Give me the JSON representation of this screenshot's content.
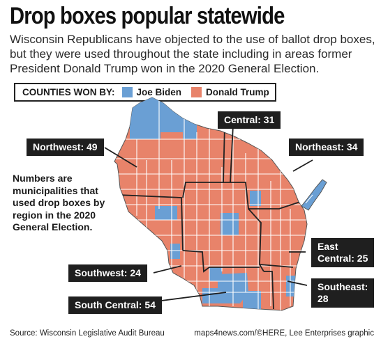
{
  "title": "Drop boxes popular statewide",
  "subtitle": "Wisconsin Republicans have objected to the use of ballot drop boxes, but they were used throughout the state including in areas former President Donald Trump won in the 2020 General Election.",
  "legend": {
    "heading": "COUNTIES WON BY:",
    "items": [
      {
        "label": "Joe Biden",
        "color": "#6a9fd4"
      },
      {
        "label": "Donald Trump",
        "color": "#e8836a"
      }
    ]
  },
  "colors": {
    "biden": "#6a9fd4",
    "trump": "#e8836a",
    "county_border": "#ffffff",
    "region_border": "#222222",
    "label_bg": "#1f1f1f"
  },
  "regions": [
    {
      "name": "Northwest",
      "count": 49,
      "label": "Northwest: 49"
    },
    {
      "name": "Central",
      "count": 31,
      "label": "Central: 31"
    },
    {
      "name": "Northeast",
      "count": 34,
      "label": "Northeast: 34"
    },
    {
      "name": "East Central",
      "count": 25,
      "label_line1": "East",
      "label_line2": "Central: 25"
    },
    {
      "name": "Southeast",
      "count": 28,
      "label_line1": "Southeast:",
      "label_line2": "28"
    },
    {
      "name": "South Central",
      "count": 54,
      "label": "South Central: 54"
    },
    {
      "name": "Southwest",
      "count": 24,
      "label": "Southwest: 24"
    }
  ],
  "note": "Numbers are municipalities that used drop boxes by region in the 2020 General Election.",
  "source": "Source: Wisconsin Legislative Audit Bureau",
  "credit": "maps4news.com/©HERE, Lee Enterprises graphic"
}
